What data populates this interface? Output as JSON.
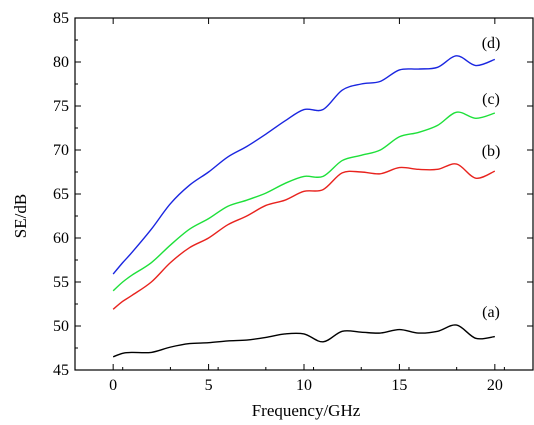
{
  "chart_data": {
    "type": "line",
    "xlabel": "Frequency/GHz",
    "ylabel": "SE/dB",
    "xlim": [
      -2,
      22
    ],
    "ylim": [
      45,
      85
    ],
    "x_ticks": [
      0,
      5,
      10,
      15,
      20
    ],
    "y_ticks": [
      45,
      50,
      55,
      60,
      65,
      70,
      75,
      80,
      85
    ],
    "grid": false,
    "series": [
      {
        "name": "(a)",
        "color": "#000000",
        "x": [
          0,
          0.5,
          1,
          2,
          3,
          4,
          5,
          6,
          7,
          8,
          9,
          10,
          11,
          12,
          13,
          14,
          15,
          16,
          17,
          18,
          19,
          20
        ],
        "y": [
          46.5,
          46.9,
          47.0,
          47.0,
          47.6,
          48.0,
          48.1,
          48.3,
          48.4,
          48.7,
          49.1,
          49.1,
          48.2,
          49.4,
          49.3,
          49.2,
          49.6,
          49.2,
          49.4,
          50.1,
          48.6,
          48.8
        ]
      },
      {
        "name": "(b)",
        "color": "#e8231e",
        "x": [
          0,
          0.5,
          1,
          2,
          3,
          4,
          5,
          6,
          7,
          8,
          9,
          10,
          11,
          12,
          13,
          14,
          15,
          16,
          17,
          18,
          19,
          20
        ],
        "y": [
          51.9,
          52.8,
          53.5,
          55.0,
          57.2,
          58.9,
          60.0,
          61.5,
          62.5,
          63.7,
          64.3,
          65.3,
          65.5,
          67.4,
          67.5,
          67.3,
          68.0,
          67.8,
          67.8,
          68.4,
          66.8,
          67.6
        ]
      },
      {
        "name": "(c)",
        "color": "#1ee03a",
        "x": [
          0,
          0.5,
          1,
          2,
          3,
          4,
          5,
          6,
          7,
          8,
          9,
          10,
          11,
          12,
          13,
          14,
          15,
          16,
          17,
          18,
          19,
          20
        ],
        "y": [
          54.0,
          55.0,
          55.8,
          57.2,
          59.2,
          61.0,
          62.2,
          63.6,
          64.3,
          65.1,
          66.2,
          67.0,
          67.0,
          68.8,
          69.4,
          70.0,
          71.5,
          72.0,
          72.8,
          74.3,
          73.6,
          74.2
        ]
      },
      {
        "name": "(d)",
        "color": "#1a26e0",
        "x": [
          0,
          0.5,
          1,
          2,
          3,
          4,
          5,
          6,
          7,
          8,
          9,
          10,
          11,
          12,
          13,
          14,
          15,
          16,
          17,
          18,
          19,
          20
        ],
        "y": [
          55.9,
          57.2,
          58.4,
          61.0,
          63.9,
          66.0,
          67.5,
          69.2,
          70.4,
          71.8,
          73.3,
          74.6,
          74.6,
          76.8,
          77.5,
          77.8,
          79.1,
          79.2,
          79.4,
          80.7,
          79.6,
          80.3
        ]
      }
    ]
  }
}
